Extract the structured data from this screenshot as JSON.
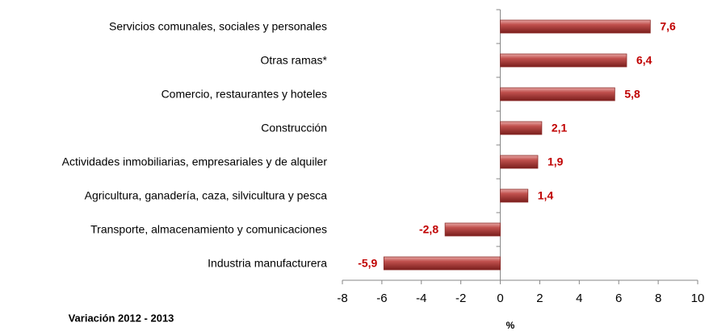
{
  "chart_data": {
    "type": "bar",
    "orientation": "horizontal",
    "categories": [
      "Servicios comunales, sociales y personales",
      "Otras ramas*",
      "Comercio, restaurantes y hoteles",
      "Construcción",
      "Actividades inmobiliarias, empresariales y de alquiler",
      "Agricultura, ganadería, caza, silvicultura y pesca",
      "Transporte, almacenamiento y comunicaciones",
      "Industria manufacturera"
    ],
    "values": [
      7.6,
      6.4,
      5.8,
      2.1,
      1.9,
      1.4,
      -2.8,
      -5.9
    ],
    "value_labels": [
      "7,6",
      "6,4",
      "5,8",
      "2,1",
      "1,9",
      "1,4",
      "-2,8",
      "-5,9"
    ],
    "color": "#c0504d",
    "label_color": "#c00000",
    "xlim": [
      -8,
      10
    ],
    "xticks": [
      -8,
      -6,
      -4,
      -2,
      0,
      2,
      4,
      6,
      8,
      10
    ],
    "x_label": "%",
    "annotation": "Variación 2012 - 2013"
  }
}
